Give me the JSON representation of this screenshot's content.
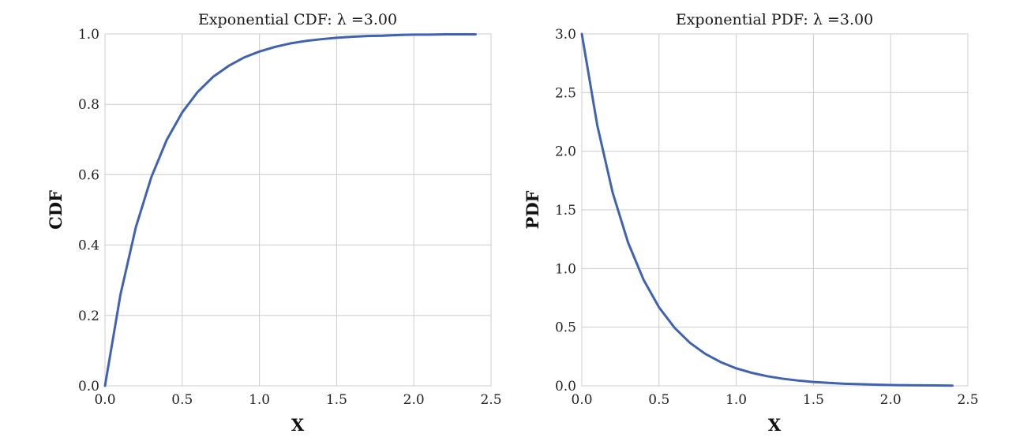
{
  "chart_data": [
    {
      "type": "line",
      "title": "Exponential CDF: λ =3.00",
      "xlabel": "X",
      "ylabel": "CDF",
      "xlim": [
        0.0,
        2.5
      ],
      "ylim": [
        0.0,
        1.0
      ],
      "xticks": [
        "0.0",
        "0.5",
        "1.0",
        "1.5",
        "2.0",
        "2.5"
      ],
      "yticks": [
        "0.0",
        "0.2",
        "0.4",
        "0.6",
        "0.8",
        "1.0"
      ],
      "grid": true,
      "line_color": "#4063b1",
      "series": [
        {
          "x": [
            0.0,
            0.1,
            0.2,
            0.3,
            0.4,
            0.5,
            0.6,
            0.7,
            0.8,
            0.9,
            1.0,
            1.1,
            1.2,
            1.3,
            1.4,
            1.5,
            1.6,
            1.7,
            1.8,
            1.9,
            2.0,
            2.1,
            2.2,
            2.3,
            2.4
          ],
          "y": [
            0.0,
            0.259,
            0.451,
            0.593,
            0.699,
            0.777,
            0.835,
            0.878,
            0.909,
            0.933,
            0.95,
            0.963,
            0.973,
            0.98,
            0.985,
            0.989,
            0.992,
            0.994,
            0.995,
            0.997,
            0.998,
            0.998,
            0.999,
            0.999,
            0.999
          ]
        }
      ]
    },
    {
      "type": "line",
      "title": "Exponential PDF: λ =3.00",
      "xlabel": "X",
      "ylabel": "PDF",
      "xlim": [
        0.0,
        2.5
      ],
      "ylim": [
        0.0,
        3.0
      ],
      "xticks": [
        "0.0",
        "0.5",
        "1.0",
        "1.5",
        "2.0",
        "2.5"
      ],
      "yticks": [
        "0.0",
        "0.5",
        "1.0",
        "1.5",
        "2.0",
        "2.5",
        "3.0"
      ],
      "grid": true,
      "line_color": "#4063b1",
      "series": [
        {
          "x": [
            0.0,
            0.1,
            0.2,
            0.3,
            0.4,
            0.5,
            0.6,
            0.7,
            0.8,
            0.9,
            1.0,
            1.1,
            1.2,
            1.3,
            1.4,
            1.5,
            1.6,
            1.7,
            1.8,
            1.9,
            2.0,
            2.1,
            2.2,
            2.3,
            2.4
          ],
          "y": [
            3.0,
            2.222,
            1.646,
            1.22,
            0.904,
            0.669,
            0.496,
            0.367,
            0.272,
            0.202,
            0.149,
            0.111,
            0.082,
            0.061,
            0.045,
            0.033,
            0.025,
            0.018,
            0.014,
            0.01,
            0.007,
            0.005,
            0.004,
            0.003,
            0.002
          ]
        }
      ]
    }
  ]
}
